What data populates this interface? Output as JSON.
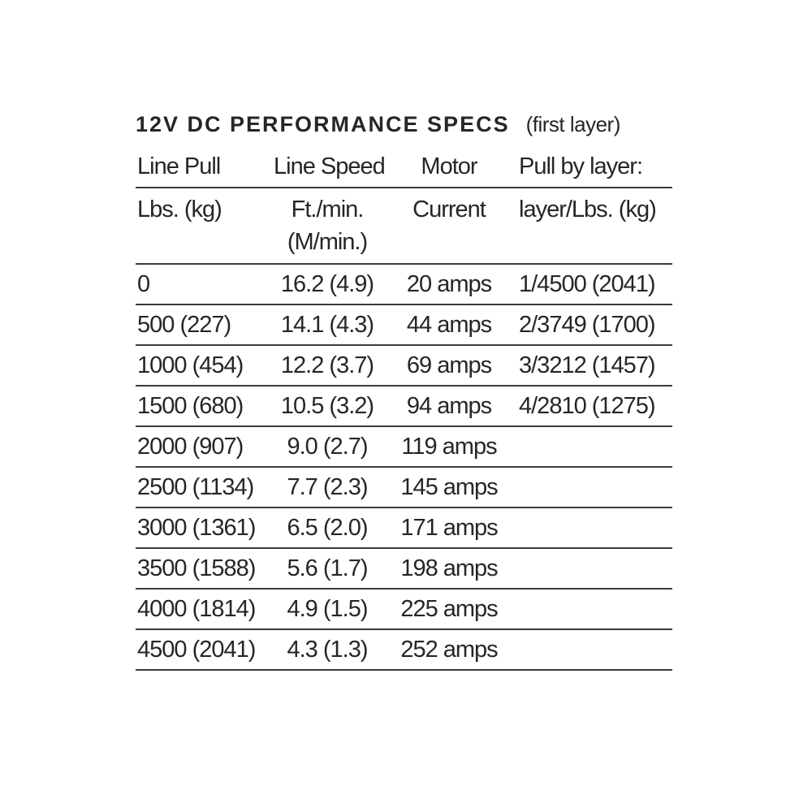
{
  "title": {
    "main": "12V DC PERFORMANCE SPECS",
    "suffix": "(first layer)"
  },
  "table": {
    "columns": [
      {
        "id": "line-pull",
        "header": "Line Pull",
        "subheader": "Lbs. (kg)"
      },
      {
        "id": "line-speed",
        "header": "Line Speed",
        "subheader": "Ft./min.",
        "subheader2": "(M/min.)"
      },
      {
        "id": "motor-current",
        "header": "Motor",
        "subheader": "Current"
      },
      {
        "id": "pull-by-layer",
        "header": "Pull by layer:",
        "subheader": "layer/Lbs. (kg)"
      }
    ],
    "rows": [
      [
        "0",
        "16.2 (4.9)",
        "20 amps",
        "1/4500 (2041)"
      ],
      [
        "500 (227)",
        "14.1 (4.3)",
        "44 amps",
        "2/3749 (1700)"
      ],
      [
        "1000 (454)",
        "12.2 (3.7)",
        "69 amps",
        "3/3212 (1457)"
      ],
      [
        "1500 (680)",
        "10.5 (3.2)",
        "94 amps",
        "4/2810 (1275)"
      ],
      [
        "2000 (907)",
        "9.0 (2.7)",
        "119 amps",
        ""
      ],
      [
        "2500 (1134)",
        "7.7 (2.3)",
        "145 amps",
        ""
      ],
      [
        "3000 (1361)",
        "6.5 (2.0)",
        "171 amps",
        ""
      ],
      [
        "3500 (1588)",
        "5.6 (1.7)",
        "198 amps",
        ""
      ],
      [
        "4000 (1814)",
        "4.9 (1.5)",
        "225 amps",
        ""
      ],
      [
        "4500 (2041)",
        "4.3 (1.3)",
        "252 amps",
        ""
      ]
    ]
  },
  "colors": {
    "text": "#262626",
    "rule": "#3b3b3b",
    "background": "#ffffff"
  }
}
